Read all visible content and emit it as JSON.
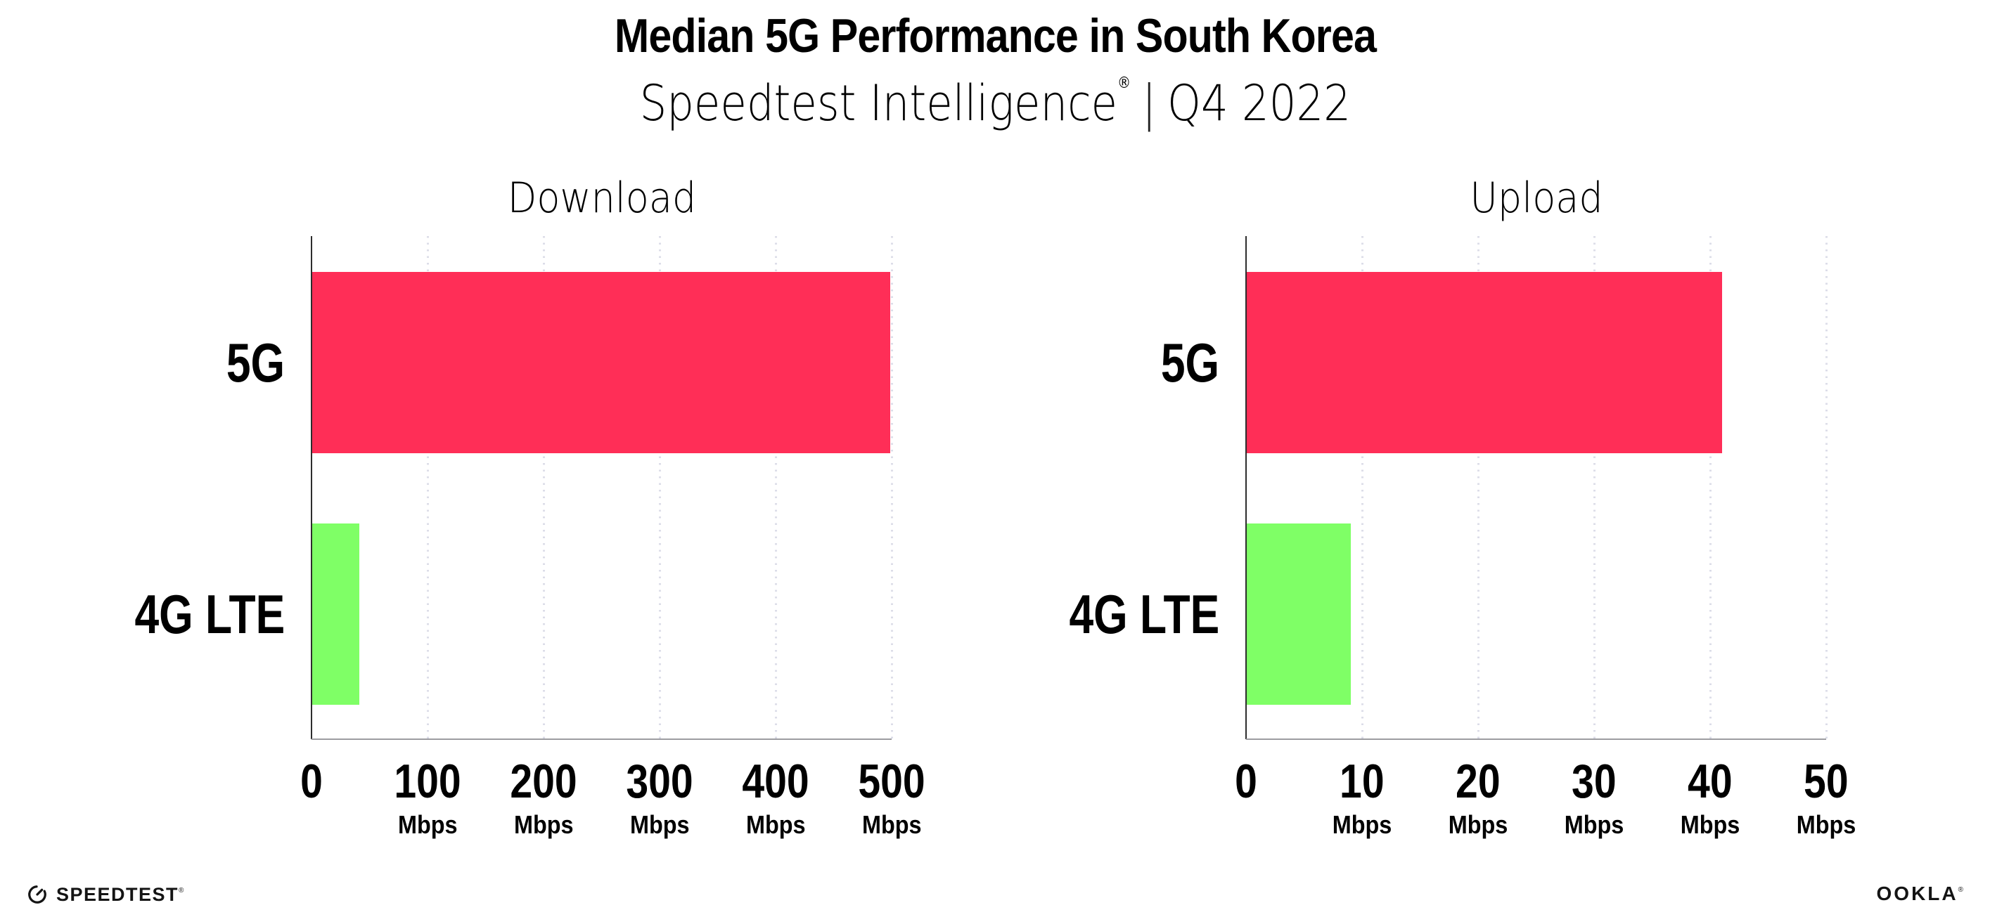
{
  "header": {
    "title": "Median 5G Performance in South Korea",
    "subtitle_brand": "Speedtest Intelligence",
    "registered_mark": "®",
    "subtitle_separator": "|",
    "subtitle_period": "Q4 2022"
  },
  "chart_data": [
    {
      "type": "bar",
      "orientation": "horizontal",
      "title": "Download",
      "categories": [
        "5G",
        "4G LTE"
      ],
      "values": [
        499,
        41
      ],
      "value_unit": "Mbps",
      "bar_colors": [
        "#FF2E57",
        "#7FFF66"
      ],
      "xlim": [
        0,
        500
      ],
      "xticks": [
        0,
        100,
        200,
        300,
        400,
        500
      ],
      "xtick_unit": "Mbps",
      "grid": "vertical-dotted",
      "legend": "none"
    },
    {
      "type": "bar",
      "orientation": "horizontal",
      "title": "Upload",
      "categories": [
        "5G",
        "4G LTE"
      ],
      "values": [
        41,
        9
      ],
      "value_unit": "Mbps",
      "bar_colors": [
        "#FF2E57",
        "#7FFF66"
      ],
      "xlim": [
        0,
        50
      ],
      "xticks": [
        0,
        10,
        20,
        30,
        40,
        50
      ],
      "xtick_unit": "Mbps",
      "grid": "vertical-dotted",
      "legend": "none"
    }
  ],
  "footer": {
    "speedtest_wordmark": "SPEEDTEST",
    "speedtest_mark": "®",
    "ookla_wordmark": "OOKLA",
    "ookla_mark": "®"
  },
  "colors": {
    "bar_5g": "#FF2E57",
    "bar_4g_lte": "#7FFF66",
    "gridline": "#DCDDE8",
    "axis_x": "#9C9CA1",
    "axis_y": "#2D2D2D",
    "text": "#000000"
  }
}
